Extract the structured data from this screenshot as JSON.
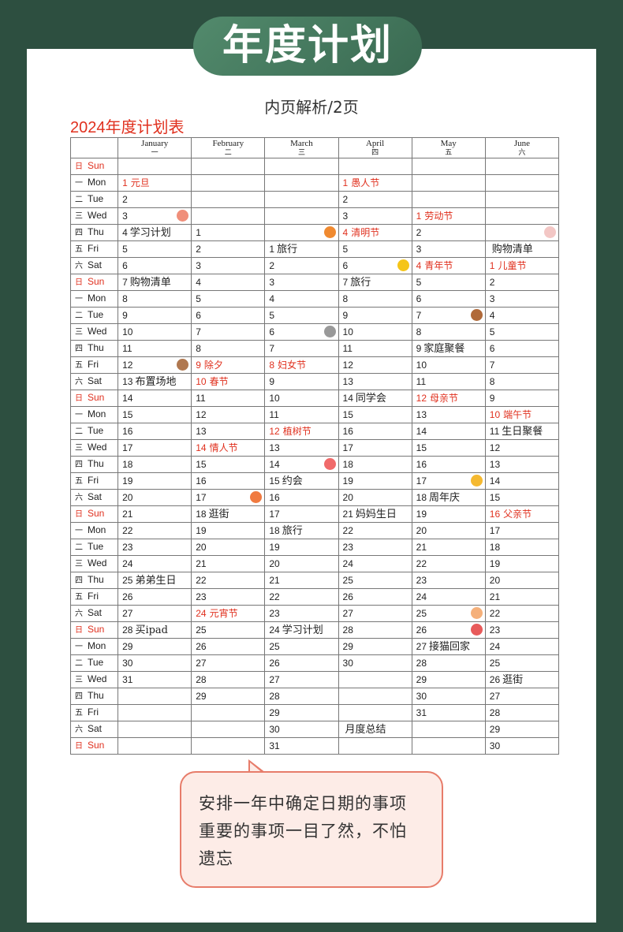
{
  "banner_title": "年度计划",
  "subtitle": "内页解析/2页",
  "table_title": "2024年度计划表",
  "colors": {
    "background": "#2d4f40",
    "accent_red": "#e0301e",
    "callout_border": "#e77c6a"
  },
  "months": [
    {
      "en": "January",
      "cn": "一"
    },
    {
      "en": "February",
      "cn": "二"
    },
    {
      "en": "March",
      "cn": "三"
    },
    {
      "en": "April",
      "cn": "四"
    },
    {
      "en": "May",
      "cn": "五"
    },
    {
      "en": "June",
      "cn": "六"
    }
  ],
  "rows": [
    {
      "c": "日",
      "e": "Sun",
      "cells": [
        "",
        "",
        "",
        "",
        "",
        ""
      ]
    },
    {
      "c": "一",
      "e": "Mon",
      "cells": [
        {
          "d": "1",
          "n": "元旦",
          "r": 1
        },
        "",
        "",
        {
          "d": "1",
          "n": "愚人节",
          "r": 1
        },
        "",
        ""
      ]
    },
    {
      "c": "二",
      "e": "Tue",
      "cells": [
        "2",
        "",
        "",
        "2",
        "",
        ""
      ]
    },
    {
      "c": "三",
      "e": "Wed",
      "cells": [
        "3",
        "",
        "",
        "3",
        {
          "d": "1",
          "n": "劳动节",
          "r": 1
        },
        ""
      ]
    },
    {
      "c": "四",
      "e": "Thu",
      "cells": [
        {
          "d": "4",
          "n": "学习计划"
        },
        "1",
        "",
        {
          "d": "4",
          "n": "清明节",
          "r": 1
        },
        "2",
        ""
      ]
    },
    {
      "c": "五",
      "e": "Fri",
      "cells": [
        "5",
        "2",
        {
          "d": "1",
          "n": "旅行"
        },
        "5",
        "3",
        {
          "d": "",
          "n": "购物清单"
        }
      ]
    },
    {
      "c": "六",
      "e": "Sat",
      "cells": [
        "6",
        "3",
        "2",
        "6",
        {
          "d": "4",
          "n": "青年节",
          "r": 1
        },
        {
          "d": "1",
          "n": "儿童节",
          "r": 1
        }
      ]
    },
    {
      "c": "日",
      "e": "Sun",
      "cells": [
        {
          "d": "7",
          "n": "购物清单"
        },
        "4",
        "3",
        {
          "d": "7",
          "n": "旅行"
        },
        "5",
        "2"
      ]
    },
    {
      "c": "一",
      "e": "Mon",
      "cells": [
        "8",
        "5",
        "4",
        "8",
        "6",
        "3"
      ]
    },
    {
      "c": "二",
      "e": "Tue",
      "cells": [
        "9",
        "6",
        "5",
        "9",
        "7",
        "4"
      ]
    },
    {
      "c": "三",
      "e": "Wed",
      "cells": [
        "10",
        "7",
        "6",
        "10",
        "8",
        "5"
      ]
    },
    {
      "c": "四",
      "e": "Thu",
      "cells": [
        "11",
        "8",
        "7",
        "11",
        {
          "d": "9",
          "n": "家庭聚餐"
        },
        "6"
      ]
    },
    {
      "c": "五",
      "e": "Fri",
      "cells": [
        "12",
        {
          "d": "9",
          "n": "除夕",
          "r": 1
        },
        {
          "d": "8",
          "n": "妇女节",
          "r": 1
        },
        "12",
        "10",
        "7"
      ]
    },
    {
      "c": "六",
      "e": "Sat",
      "cells": [
        {
          "d": "13",
          "n": "布置场地"
        },
        {
          "d": "10",
          "n": "春节",
          "r": 1
        },
        "9",
        "13",
        "11",
        "8"
      ]
    },
    {
      "c": "日",
      "e": "Sun",
      "cells": [
        "14",
        "11",
        "10",
        {
          "d": "14",
          "n": "同学会"
        },
        {
          "d": "12",
          "n": "母亲节",
          "r": 1
        },
        "9"
      ]
    },
    {
      "c": "一",
      "e": "Mon",
      "cells": [
        "15",
        "12",
        "11",
        "15",
        "13",
        {
          "d": "10",
          "n": "端午节",
          "r": 1
        }
      ]
    },
    {
      "c": "二",
      "e": "Tue",
      "cells": [
        "16",
        "13",
        {
          "d": "12",
          "n": "植树节",
          "r": 1
        },
        "16",
        "14",
        {
          "d": "11",
          "n": "生日聚餐"
        }
      ]
    },
    {
      "c": "三",
      "e": "Wed",
      "cells": [
        "17",
        {
          "d": "14",
          "n": "情人节",
          "r": 1
        },
        "13",
        "17",
        "15",
        "12"
      ]
    },
    {
      "c": "四",
      "e": "Thu",
      "cells": [
        "18",
        "15",
        "14",
        "18",
        "16",
        "13"
      ]
    },
    {
      "c": "五",
      "e": "Fri",
      "cells": [
        "19",
        "16",
        {
          "d": "15",
          "n": "约会"
        },
        "19",
        "17",
        "14"
      ]
    },
    {
      "c": "六",
      "e": "Sat",
      "cells": [
        "20",
        "17",
        "16",
        "20",
        {
          "d": "18",
          "n": "周年庆"
        },
        "15"
      ]
    },
    {
      "c": "日",
      "e": "Sun",
      "cells": [
        "21",
        {
          "d": "18",
          "n": "逛街"
        },
        "17",
        {
          "d": "21",
          "n": "妈妈生日"
        },
        "19",
        {
          "d": "16",
          "n": "父亲节",
          "r": 1
        }
      ]
    },
    {
      "c": "一",
      "e": "Mon",
      "cells": [
        "22",
        "19",
        {
          "d": "18",
          "n": "旅行"
        },
        "22",
        "20",
        "17"
      ]
    },
    {
      "c": "二",
      "e": "Tue",
      "cells": [
        "23",
        "20",
        "19",
        "23",
        "21",
        "18"
      ]
    },
    {
      "c": "三",
      "e": "Wed",
      "cells": [
        "24",
        "21",
        "20",
        "24",
        "22",
        "19"
      ]
    },
    {
      "c": "四",
      "e": "Thu",
      "cells": [
        {
          "d": "25",
          "n": "弟弟生日"
        },
        "22",
        "21",
        "25",
        "23",
        "20"
      ]
    },
    {
      "c": "五",
      "e": "Fri",
      "cells": [
        "26",
        "23",
        "22",
        "26",
        "24",
        "21"
      ]
    },
    {
      "c": "六",
      "e": "Sat",
      "cells": [
        "27",
        {
          "d": "24",
          "n": "元宵节",
          "r": 1
        },
        "23",
        "27",
        "25",
        "22"
      ]
    },
    {
      "c": "日",
      "e": "Sun",
      "cells": [
        {
          "d": "28",
          "n": "买ipad"
        },
        "25",
        {
          "d": "24",
          "n": "学习计划"
        },
        "28",
        "26",
        "23"
      ]
    },
    {
      "c": "一",
      "e": "Mon",
      "cells": [
        "29",
        "26",
        "25",
        "29",
        {
          "d": "27",
          "n": "接猫回家"
        },
        "24"
      ]
    },
    {
      "c": "二",
      "e": "Tue",
      "cells": [
        "30",
        "27",
        "26",
        "30",
        "28",
        "25"
      ]
    },
    {
      "c": "三",
      "e": "Wed",
      "cells": [
        "31",
        "28",
        "27",
        "",
        "29",
        {
          "d": "26",
          "n": "逛街"
        }
      ]
    },
    {
      "c": "四",
      "e": "Thu",
      "cells": [
        "",
        "29",
        "28",
        "",
        "30",
        "27"
      ]
    },
    {
      "c": "五",
      "e": "Fri",
      "cells": [
        "",
        "",
        "29",
        "",
        "31",
        "28"
      ]
    },
    {
      "c": "六",
      "e": "Sat",
      "cells": [
        "",
        "",
        "30",
        {
          "d": "",
          "n": "月度总结"
        },
        "",
        "29"
      ]
    },
    {
      "c": "日",
      "e": "Sun",
      "cells": [
        "",
        "",
        "31",
        "",
        "",
        "30"
      ]
    }
  ],
  "callout": {
    "line1": "安排一年中确定日期的事项",
    "line2": "重要的事项一目了然，不怕",
    "line3": "遗忘"
  },
  "stickers": [
    "book-icon",
    "rabbit-icon",
    "heart-icon",
    "star-icon",
    "donut-icon",
    "bear-icon",
    "camera-icon",
    "love-heart-icon",
    "beer-icon",
    "flower-icon",
    "cat-icon",
    "fish-icon"
  ]
}
